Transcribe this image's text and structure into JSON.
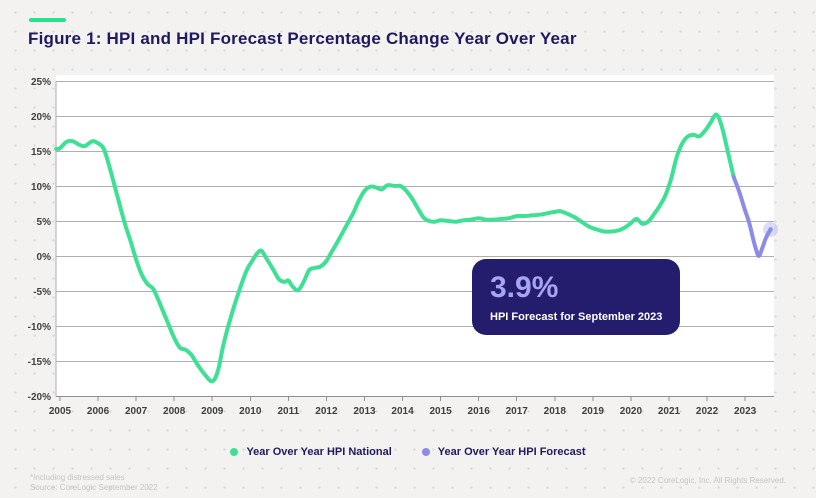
{
  "page": {
    "background_color": "#F3F2F0",
    "dot_color": "#DBDAD8",
    "accent_bar_color": "#2BE08B",
    "title_color": "#1F1A5E"
  },
  "chart_data": {
    "type": "line",
    "title": "Figure 1: HPI and HPI Forecast Percentage Change Year Over Year",
    "xlabel": "",
    "ylabel": "",
    "xlim": [
      2004.9,
      2023.76
    ],
    "ylim": [
      -20,
      26
    ],
    "grid": "horizontal",
    "legend_position": "bottom-center",
    "plot_background": "#FFFFFF",
    "gridline_color": "#AFAFAF",
    "x_ticks": [
      2005,
      2006,
      2007,
      2008,
      2009,
      2010,
      2011,
      2012,
      2013,
      2014,
      2015,
      2016,
      2017,
      2018,
      2019,
      2020,
      2021,
      2022,
      2023
    ],
    "x_tick_labels": [
      "2005",
      "2006",
      "2007",
      "2008",
      "2009",
      "2010",
      "2011",
      "2012",
      "2013",
      "2014",
      "2015",
      "2016",
      "2017",
      "2018",
      "2019",
      "2020",
      "2021",
      "2022",
      "2023"
    ],
    "y_ticks": [
      25,
      20,
      15,
      10,
      5,
      0,
      -5,
      -10,
      -15,
      -20
    ],
    "y_tick_labels": [
      "25%",
      "20%",
      "15%",
      "10%",
      "5%",
      "0%",
      "-5%",
      "-10%",
      "-15%",
      "-20%"
    ],
    "series": [
      {
        "name": "Year Over Year HPI National",
        "color": "#3EE094",
        "points": [
          [
            2004.9,
            15.4
          ],
          [
            2005.0,
            15.5
          ],
          [
            2005.17,
            16.4
          ],
          [
            2005.33,
            16.5
          ],
          [
            2005.5,
            16.0
          ],
          [
            2005.65,
            15.8
          ],
          [
            2005.85,
            16.5
          ],
          [
            2006.0,
            16.2
          ],
          [
            2006.15,
            15.4
          ],
          [
            2006.3,
            12.8
          ],
          [
            2006.5,
            8.8
          ],
          [
            2006.7,
            4.8
          ],
          [
            2006.85,
            2.3
          ],
          [
            2007.0,
            -0.4
          ],
          [
            2007.15,
            -2.6
          ],
          [
            2007.3,
            -3.9
          ],
          [
            2007.45,
            -4.6
          ],
          [
            2007.6,
            -6.4
          ],
          [
            2007.8,
            -9.0
          ],
          [
            2008.0,
            -11.6
          ],
          [
            2008.15,
            -13.0
          ],
          [
            2008.3,
            -13.3
          ],
          [
            2008.45,
            -14.0
          ],
          [
            2008.6,
            -15.3
          ],
          [
            2008.8,
            -16.8
          ],
          [
            2009.0,
            -17.8
          ],
          [
            2009.15,
            -16.3
          ],
          [
            2009.3,
            -12.4
          ],
          [
            2009.5,
            -8.4
          ],
          [
            2009.7,
            -5.0
          ],
          [
            2009.9,
            -2.0
          ],
          [
            2010.05,
            -0.6
          ],
          [
            2010.2,
            0.6
          ],
          [
            2010.3,
            0.8
          ],
          [
            2010.45,
            -0.5
          ],
          [
            2010.6,
            -1.8
          ],
          [
            2010.75,
            -3.2
          ],
          [
            2010.9,
            -3.6
          ],
          [
            2011.0,
            -3.4
          ],
          [
            2011.1,
            -4.2
          ],
          [
            2011.25,
            -4.8
          ],
          [
            2011.4,
            -3.6
          ],
          [
            2011.55,
            -1.9
          ],
          [
            2011.7,
            -1.6
          ],
          [
            2011.85,
            -1.4
          ],
          [
            2012.0,
            -0.6
          ],
          [
            2012.15,
            0.8
          ],
          [
            2012.3,
            2.2
          ],
          [
            2012.5,
            4.2
          ],
          [
            2012.7,
            6.2
          ],
          [
            2012.85,
            8.0
          ],
          [
            2013.0,
            9.4
          ],
          [
            2013.15,
            10.0
          ],
          [
            2013.3,
            9.9
          ],
          [
            2013.45,
            9.6
          ],
          [
            2013.6,
            10.2
          ],
          [
            2013.8,
            10.1
          ],
          [
            2013.95,
            10.1
          ],
          [
            2014.1,
            9.4
          ],
          [
            2014.25,
            8.3
          ],
          [
            2014.4,
            6.9
          ],
          [
            2014.55,
            5.6
          ],
          [
            2014.7,
            5.1
          ],
          [
            2014.85,
            5.0
          ],
          [
            2015.0,
            5.2
          ],
          [
            2015.2,
            5.1
          ],
          [
            2015.4,
            5.0
          ],
          [
            2015.6,
            5.2
          ],
          [
            2015.8,
            5.3
          ],
          [
            2016.0,
            5.5
          ],
          [
            2016.2,
            5.3
          ],
          [
            2016.4,
            5.3
          ],
          [
            2016.6,
            5.4
          ],
          [
            2016.8,
            5.5
          ],
          [
            2017.0,
            5.8
          ],
          [
            2017.2,
            5.8
          ],
          [
            2017.4,
            5.9
          ],
          [
            2017.6,
            6.0
          ],
          [
            2017.8,
            6.2
          ],
          [
            2018.0,
            6.4
          ],
          [
            2018.15,
            6.5
          ],
          [
            2018.3,
            6.2
          ],
          [
            2018.5,
            5.7
          ],
          [
            2018.7,
            5.0
          ],
          [
            2018.9,
            4.3
          ],
          [
            2019.1,
            3.9
          ],
          [
            2019.3,
            3.6
          ],
          [
            2019.5,
            3.6
          ],
          [
            2019.7,
            3.8
          ],
          [
            2019.85,
            4.2
          ],
          [
            2020.0,
            4.8
          ],
          [
            2020.15,
            5.4
          ],
          [
            2020.3,
            4.7
          ],
          [
            2020.45,
            5.0
          ],
          [
            2020.6,
            6.0
          ],
          [
            2020.75,
            7.2
          ],
          [
            2020.9,
            8.7
          ],
          [
            2021.05,
            11.0
          ],
          [
            2021.2,
            14.2
          ],
          [
            2021.35,
            16.2
          ],
          [
            2021.5,
            17.2
          ],
          [
            2021.65,
            17.4
          ],
          [
            2021.8,
            17.2
          ],
          [
            2021.95,
            18.0
          ],
          [
            2022.1,
            19.2
          ],
          [
            2022.25,
            20.3
          ],
          [
            2022.4,
            18.4
          ],
          [
            2022.55,
            14.9
          ],
          [
            2022.7,
            11.4
          ]
        ]
      },
      {
        "name": "Year Over Year HPI Forecast",
        "color": "#8C8CE8",
        "endpoint_marker": true,
        "points": [
          [
            2022.7,
            11.4
          ],
          [
            2022.85,
            9.2
          ],
          [
            2023.0,
            6.6
          ],
          [
            2023.1,
            5.0
          ],
          [
            2023.2,
            2.8
          ],
          [
            2023.28,
            1.2
          ],
          [
            2023.36,
            0.1
          ],
          [
            2023.45,
            1.2
          ],
          [
            2023.55,
            2.7
          ],
          [
            2023.67,
            3.9
          ]
        ]
      }
    ],
    "annotation": {
      "value": "3.9%",
      "label": "HPI Forecast for September 2023"
    }
  },
  "callout": {
    "value": "3.9%",
    "label": "HPI Forecast for September 2023",
    "background": "#241D6E",
    "value_color": "#A6A4F3"
  },
  "footer": {
    "note": "*Including distressed sales",
    "source": "Source: CoreLogic September 2022",
    "copyright": "© 2022 CoreLogic, Inc. All Rights Reserved."
  }
}
